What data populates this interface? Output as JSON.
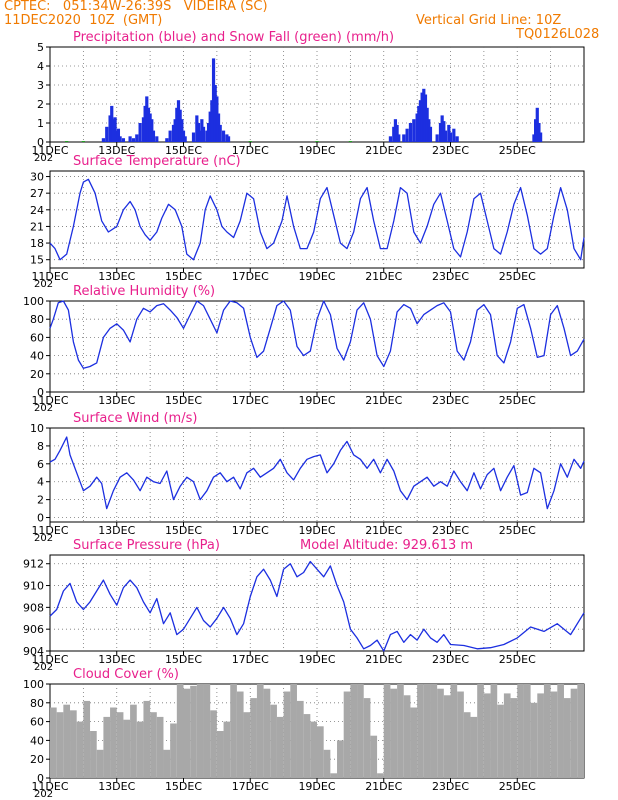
{
  "header": {
    "line1": "CPTEC:   051:34W-26:39S   VIDEIRA (SC)",
    "line2": "11DEC2020  10Z  (GMT)",
    "vgrid": "Vertical Grid Line: 10Z",
    "code": "TQ0126L028"
  },
  "colors": {
    "header": "#f07a00",
    "title": "#e8208c",
    "line": "#1c2fe0",
    "precip": "#1c2fe0",
    "snow": "#18a018",
    "cloud": "#a8a8a8"
  },
  "x_ticks": [
    "11DEC",
    "13DEC",
    "15DEC",
    "17DEC",
    "19DEC",
    "21DEC",
    "23DEC",
    "25DEC"
  ],
  "year_fragment": "202",
  "chart_data": [
    {
      "id": "precip",
      "type": "bar",
      "title": "Precipitation (blue) and Snow Fall (green) (mm/h)",
      "ylim": [
        0,
        5
      ],
      "yticks": [
        "0",
        "1",
        "2",
        "3",
        "4",
        "5"
      ],
      "x_days": [
        0,
        16
      ],
      "series": [
        {
          "name": "Precipitation",
          "points": [
            [
              1.6,
              0.2
            ],
            [
              1.7,
              0.8
            ],
            [
              1.8,
              1.4
            ],
            [
              1.85,
              1.9
            ],
            [
              1.9,
              1.2
            ],
            [
              1.95,
              1.3
            ],
            [
              2.0,
              0.6
            ],
            [
              2.05,
              0.7
            ],
            [
              2.1,
              0.3
            ],
            [
              2.2,
              0.2
            ],
            [
              2.4,
              0.3
            ],
            [
              2.5,
              0.2
            ],
            [
              2.6,
              0.4
            ],
            [
              2.7,
              1.0
            ],
            [
              2.8,
              1.3
            ],
            [
              2.85,
              1.9
            ],
            [
              2.9,
              2.4
            ],
            [
              2.95,
              1.8
            ],
            [
              3.0,
              1.5
            ],
            [
              3.05,
              1.2
            ],
            [
              3.1,
              0.6
            ],
            [
              3.2,
              0.3
            ],
            [
              3.5,
              0.2
            ],
            [
              3.6,
              0.6
            ],
            [
              3.7,
              0.9
            ],
            [
              3.75,
              1.2
            ],
            [
              3.8,
              1.8
            ],
            [
              3.85,
              2.2
            ],
            [
              3.9,
              1.7
            ],
            [
              3.95,
              1.2
            ],
            [
              4.0,
              0.6
            ],
            [
              4.05,
              0.3
            ],
            [
              4.3,
              0.5
            ],
            [
              4.4,
              1.4
            ],
            [
              4.45,
              1.0
            ],
            [
              4.5,
              0.6
            ],
            [
              4.55,
              1.2
            ],
            [
              4.6,
              0.8
            ],
            [
              4.7,
              0.6
            ],
            [
              4.75,
              1.0
            ],
            [
              4.8,
              1.6
            ],
            [
              4.85,
              2.2
            ],
            [
              4.9,
              4.4
            ],
            [
              4.95,
              3.0
            ],
            [
              5.0,
              2.4
            ],
            [
              5.05,
              1.5
            ],
            [
              5.1,
              0.9
            ],
            [
              5.2,
              0.6
            ],
            [
              5.3,
              0.4
            ],
            [
              5.35,
              0.3
            ],
            [
              10.2,
              0.3
            ],
            [
              10.3,
              0.8
            ],
            [
              10.35,
              1.2
            ],
            [
              10.4,
              0.9
            ],
            [
              10.45,
              0.4
            ],
            [
              10.6,
              0.4
            ],
            [
              10.7,
              0.7
            ],
            [
              10.8,
              1.0
            ],
            [
              10.9,
              1.2
            ],
            [
              11.0,
              1.5
            ],
            [
              11.05,
              1.9
            ],
            [
              11.1,
              2.2
            ],
            [
              11.15,
              2.6
            ],
            [
              11.2,
              2.8
            ],
            [
              11.25,
              2.5
            ],
            [
              11.3,
              1.8
            ],
            [
              11.35,
              1.2
            ],
            [
              11.4,
              0.8
            ],
            [
              11.6,
              0.4
            ],
            [
              11.7,
              1.0
            ],
            [
              11.75,
              1.4
            ],
            [
              11.8,
              1.1
            ],
            [
              11.85,
              0.6
            ],
            [
              11.95,
              0.9
            ],
            [
              12.0,
              0.5
            ],
            [
              12.1,
              0.7
            ],
            [
              12.2,
              0.3
            ],
            [
              14.5,
              0.4
            ],
            [
              14.55,
              1.2
            ],
            [
              14.6,
              1.8
            ],
            [
              14.65,
              1.0
            ],
            [
              14.7,
              0.5
            ]
          ]
        },
        {
          "name": "Snow Fall",
          "points": [
            [
              0.5,
              0.05
            ],
            [
              1.0,
              0.05
            ],
            [
              6.0,
              0.05
            ],
            [
              8.0,
              0.05
            ],
            [
              9.0,
              0.05
            ]
          ]
        }
      ]
    },
    {
      "id": "temp",
      "type": "line",
      "title": "Surface Temperature (nC)",
      "ylim": [
        13.5,
        31
      ],
      "yticks": [
        "15",
        "18",
        "21",
        "24",
        "27",
        "30"
      ],
      "x": [
        0,
        0.15,
        0.3,
        0.5,
        0.7,
        0.9,
        1.0,
        1.15,
        1.35,
        1.55,
        1.75,
        2.0,
        2.2,
        2.4,
        2.55,
        2.7,
        2.85,
        3.0,
        3.2,
        3.35,
        3.55,
        3.75,
        3.95,
        4.1,
        4.3,
        4.5,
        4.65,
        4.8,
        5.0,
        5.15,
        5.3,
        5.5,
        5.7,
        5.9,
        6.1,
        6.3,
        6.5,
        6.7,
        6.95,
        7.1,
        7.3,
        7.5,
        7.7,
        7.9,
        8.1,
        8.3,
        8.5,
        8.7,
        8.9,
        9.1,
        9.3,
        9.5,
        9.7,
        9.9,
        10.1,
        10.3,
        10.5,
        10.7,
        10.9,
        11.1,
        11.3,
        11.5,
        11.7,
        11.9,
        12.1,
        12.3,
        12.5,
        12.7,
        12.9,
        13.1,
        13.3,
        13.5,
        13.7,
        13.9,
        14.1,
        14.3,
        14.5,
        14.7,
        14.9,
        15.1,
        15.3,
        15.5,
        15.7,
        15.9,
        16.0
      ],
      "y": [
        18,
        17,
        15,
        16,
        21,
        27,
        29,
        29.5,
        27,
        22,
        20,
        21,
        24,
        25.5,
        24,
        21,
        19.5,
        18.5,
        20,
        22.5,
        25,
        24,
        21,
        16,
        15,
        18,
        24,
        26.5,
        24,
        21,
        20,
        19,
        22,
        27,
        26,
        20,
        17,
        18,
        22,
        26.5,
        21,
        17,
        17,
        20,
        26,
        28,
        23,
        18,
        17,
        20,
        26,
        28,
        22,
        17,
        17,
        22,
        28,
        27,
        20,
        18,
        21,
        25,
        27,
        22,
        17,
        15.5,
        20,
        26,
        27,
        22,
        17,
        16,
        20,
        25,
        28,
        23,
        17,
        16,
        17,
        23,
        28,
        24,
        17,
        15,
        19
      ]
    },
    {
      "id": "rh",
      "type": "line",
      "title": "Relative Humidity (%)",
      "ylim": [
        0,
        100
      ],
      "yticks": [
        "0",
        "20",
        "40",
        "60",
        "80",
        "100"
      ],
      "x": [
        0,
        0.1,
        0.25,
        0.4,
        0.55,
        0.7,
        0.85,
        1.0,
        1.2,
        1.4,
        1.6,
        1.8,
        2.0,
        2.2,
        2.4,
        2.6,
        2.8,
        3.0,
        3.2,
        3.4,
        3.6,
        3.8,
        4.0,
        4.2,
        4.4,
        4.6,
        4.8,
        5.0,
        5.2,
        5.4,
        5.6,
        5.8,
        6.0,
        6.2,
        6.4,
        6.6,
        6.8,
        7.0,
        7.2,
        7.4,
        7.6,
        7.8,
        8.0,
        8.2,
        8.4,
        8.6,
        8.8,
        9.0,
        9.2,
        9.4,
        9.6,
        9.8,
        10.0,
        10.2,
        10.4,
        10.6,
        10.8,
        11.0,
        11.2,
        11.4,
        11.6,
        11.8,
        12.0,
        12.2,
        12.4,
        12.6,
        12.8,
        13.0,
        13.2,
        13.4,
        13.6,
        13.8,
        14.0,
        14.2,
        14.4,
        14.6,
        14.8,
        15.0,
        15.2,
        15.4,
        15.6,
        15.8,
        16.0
      ],
      "y": [
        70,
        80,
        98,
        100,
        90,
        55,
        35,
        26,
        28,
        32,
        60,
        70,
        75,
        68,
        55,
        80,
        92,
        88,
        95,
        97,
        90,
        82,
        70,
        85,
        100,
        95,
        80,
        65,
        90,
        100,
        98,
        92,
        60,
        38,
        45,
        70,
        95,
        100,
        90,
        50,
        40,
        45,
        80,
        100,
        85,
        48,
        35,
        55,
        90,
        98,
        80,
        40,
        28,
        45,
        88,
        96,
        92,
        75,
        85,
        90,
        95,
        98,
        88,
        45,
        35,
        55,
        90,
        96,
        85,
        40,
        32,
        55,
        92,
        96,
        70,
        38,
        40,
        85,
        95,
        70,
        40,
        45,
        58
      ]
    },
    {
      "id": "wind",
      "type": "line",
      "title": "Surface Wind (m/s)",
      "ylim": [
        -0.5,
        10
      ],
      "yticks": [
        "0",
        "2",
        "4",
        "6",
        "8",
        "10"
      ],
      "x": [
        0,
        0.15,
        0.3,
        0.5,
        0.6,
        0.8,
        1.0,
        1.2,
        1.4,
        1.55,
        1.7,
        1.9,
        2.1,
        2.3,
        2.5,
        2.7,
        2.9,
        3.1,
        3.3,
        3.5,
        3.7,
        3.9,
        4.1,
        4.3,
        4.5,
        4.7,
        4.9,
        5.1,
        5.3,
        5.5,
        5.7,
        5.9,
        6.1,
        6.3,
        6.5,
        6.7,
        6.9,
        7.1,
        7.3,
        7.5,
        7.7,
        7.9,
        8.1,
        8.3,
        8.5,
        8.7,
        8.9,
        9.1,
        9.3,
        9.5,
        9.7,
        9.9,
        10.1,
        10.3,
        10.5,
        10.7,
        10.9,
        11.1,
        11.3,
        11.5,
        11.7,
        11.9,
        12.1,
        12.3,
        12.5,
        12.7,
        12.9,
        13.1,
        13.3,
        13.5,
        13.7,
        13.9,
        14.1,
        14.3,
        14.5,
        14.7,
        14.9,
        15.1,
        15.3,
        15.5,
        15.7,
        15.9,
        16.0
      ],
      "y": [
        6.2,
        6.5,
        7.5,
        9,
        7,
        5,
        3,
        3.5,
        4.5,
        3.8,
        1,
        3,
        4.5,
        5,
        4.2,
        3,
        4.5,
        4,
        3.8,
        5.2,
        2,
        3.5,
        4.5,
        4,
        2,
        3,
        4.5,
        5,
        4,
        4.5,
        3.2,
        5,
        5.5,
        4.5,
        5,
        5.5,
        6.5,
        5,
        4.2,
        5.5,
        6.5,
        6.8,
        7,
        5,
        6,
        7.5,
        8.5,
        7,
        6.5,
        5.5,
        6.5,
        5,
        6.5,
        5.2,
        3,
        2,
        3.5,
        4,
        4.5,
        3.5,
        4,
        3.5,
        5.2,
        4,
        3,
        5,
        3.2,
        4.8,
        5.5,
        3,
        4.5,
        5.8,
        2.5,
        2.8,
        5.5,
        5,
        1,
        3,
        6,
        4.5,
        6.5,
        5.5,
        6.3
      ]
    },
    {
      "id": "pressure",
      "type": "line",
      "title": "Surface Pressure (hPa)",
      "subtitle": "Model Altitude: 929.613 m",
      "ylim": [
        904,
        912.8
      ],
      "yticks": [
        "904",
        "906",
        "908",
        "910",
        "912"
      ],
      "x": [
        0,
        0.2,
        0.4,
        0.6,
        0.8,
        1.0,
        1.2,
        1.4,
        1.6,
        1.8,
        2.0,
        2.2,
        2.4,
        2.6,
        2.8,
        3.0,
        3.2,
        3.4,
        3.6,
        3.8,
        4.0,
        4.2,
        4.4,
        4.6,
        4.8,
        5.0,
        5.2,
        5.4,
        5.6,
        5.8,
        6.0,
        6.2,
        6.4,
        6.6,
        6.8,
        7.0,
        7.2,
        7.4,
        7.6,
        7.8,
        8.0,
        8.2,
        8.4,
        8.6,
        8.8,
        9.0,
        9.2,
        9.4,
        9.6,
        9.8,
        10.0,
        10.2,
        10.4,
        10.6,
        10.8,
        11.0,
        11.2,
        11.4,
        11.6,
        11.8,
        12.0,
        12.4,
        12.8,
        13.2,
        13.6,
        14.0,
        14.4,
        14.8,
        15.2,
        15.6,
        16.0
      ],
      "y": [
        907.2,
        907.8,
        909.5,
        910.2,
        908.5,
        907.8,
        908.5,
        909.5,
        910.5,
        909.2,
        908.2,
        909.8,
        910.5,
        909.8,
        908.5,
        907.5,
        908.8,
        906.5,
        907.5,
        905.5,
        906,
        907,
        908,
        906.8,
        906.2,
        907,
        908,
        907,
        905.5,
        906.5,
        909,
        910.8,
        911.5,
        910.5,
        909,
        911.5,
        912,
        910.8,
        911.2,
        912.2,
        911.5,
        910.8,
        911.8,
        910,
        908.5,
        906,
        905.2,
        904.2,
        904.5,
        905,
        904,
        905.5,
        905.8,
        904.8,
        905.5,
        905,
        906,
        905.2,
        904.8,
        905.5,
        904.6,
        904.5,
        904.2,
        904.3,
        904.6,
        905.2,
        906.2,
        905.8,
        906.5,
        905.5,
        907.5
      ]
    },
    {
      "id": "cloud",
      "type": "bar",
      "title": "Cloud Cover (%)",
      "ylim": [
        0,
        100
      ],
      "yticks": [
        "0",
        "20",
        "40",
        "60",
        "80",
        "100"
      ],
      "x": [
        0.1,
        0.3,
        0.5,
        0.7,
        0.9,
        1.1,
        1.3,
        1.5,
        1.7,
        1.9,
        2.1,
        2.3,
        2.5,
        2.7,
        2.9,
        3.1,
        3.3,
        3.5,
        3.7,
        3.9,
        4.1,
        4.3,
        4.5,
        4.7,
        4.9,
        5.1,
        5.3,
        5.5,
        5.7,
        5.9,
        6.1,
        6.3,
        6.5,
        6.7,
        6.9,
        7.1,
        7.3,
        7.5,
        7.7,
        7.9,
        8.1,
        8.3,
        8.5,
        8.7,
        8.9,
        9.1,
        9.3,
        9.5,
        9.7,
        9.9,
        10.1,
        10.3,
        10.5,
        10.7,
        10.9,
        11.1,
        11.3,
        11.5,
        11.7,
        11.9,
        12.1,
        12.3,
        12.5,
        12.7,
        12.9,
        13.1,
        13.3,
        13.5,
        13.7,
        13.9,
        14.1,
        14.3,
        14.5,
        14.7,
        14.9,
        15.1,
        15.3,
        15.5,
        15.7,
        15.9
      ],
      "values": [
        75,
        70,
        78,
        72,
        60,
        82,
        50,
        30,
        65,
        75,
        70,
        62,
        78,
        60,
        82,
        70,
        65,
        30,
        58,
        100,
        95,
        98,
        100,
        100,
        72,
        50,
        60,
        100,
        92,
        70,
        85,
        100,
        95,
        78,
        65,
        92,
        100,
        82,
        68,
        60,
        55,
        30,
        5,
        40,
        92,
        100,
        100,
        85,
        45,
        5,
        100,
        95,
        100,
        88,
        75,
        100,
        100,
        100,
        95,
        88,
        100,
        92,
        70,
        65,
        100,
        90,
        100,
        78,
        90,
        85,
        100,
        100,
        80,
        90,
        100,
        92,
        100,
        85,
        95,
        100
      ]
    }
  ]
}
